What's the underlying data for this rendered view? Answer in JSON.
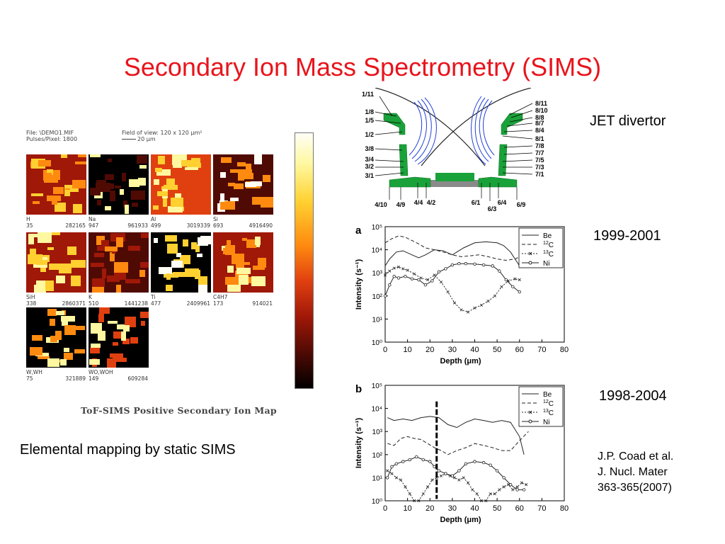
{
  "slide": {
    "title": "Secondary Ion Mass Spectrometry (SIMS)",
    "caption_left": "Elemental mapping by static SIMS",
    "label_jet": "JET divertor",
    "label_a": "1999-2001",
    "label_b": "1998-2004",
    "citation": [
      "J.P. Coad et al.",
      "J. Nucl. Mater",
      "363-365(2007)"
    ]
  },
  "ion_map": {
    "header_left": [
      "File: \\DEMO1.MIF",
      "Pulses/Pixel: 1800"
    ],
    "header_right": [
      "Field of view:  120 x 120  μm²",
      "20 μm"
    ],
    "caption": "ToF-SIMS Positive Secondary Ion Map",
    "tiles": [
      {
        "name": "H",
        "nums": [
          "35",
          "282165"
        ]
      },
      {
        "name": "Na",
        "nums": [
          "947",
          "961933"
        ]
      },
      {
        "name": "Al",
        "nums": [
          "499",
          "3019339"
        ]
      },
      {
        "name": "Si",
        "nums": [
          "693",
          "4916490"
        ]
      },
      {
        "name": "SiH",
        "nums": [
          "338",
          "2860371"
        ]
      },
      {
        "name": "K",
        "nums": [
          "510",
          "1441238"
        ]
      },
      {
        "name": "Ti",
        "nums": [
          "477",
          "2409961"
        ]
      },
      {
        "name": "C4H7",
        "nums": [
          "173",
          "914021"
        ]
      },
      {
        "name": "W,WH",
        "nums": [
          "75",
          "321889"
        ]
      },
      {
        "name": "WO,WOH",
        "nums": [
          "149",
          "609284"
        ]
      }
    ],
    "colors": [
      "#000000",
      "#500a04",
      "#a01808",
      "#e04010",
      "#ff8a10",
      "#ffd030",
      "#fff8a0",
      "#fffef6"
    ]
  },
  "divertor": {
    "left_labels": [
      "1/11",
      "1/8",
      "1/5",
      "1/2",
      "3/8",
      "3/4",
      "3/2",
      "3/1"
    ],
    "right_labels": [
      "8/11",
      "8/10",
      "8/8",
      "8/7",
      "8/4",
      "8/1",
      "7/8",
      "7/7",
      "7/5",
      "7/3",
      "7/1"
    ],
    "bottom_labels": [
      "4/10",
      "4/9",
      "4/4",
      "4/2",
      "6/1",
      "6/3",
      "6/4",
      "6/9"
    ],
    "colors": {
      "tile": "#1aa23a",
      "field_lines": "#1f3fd6",
      "separatrix": "#222222",
      "base": "#8a8a8a"
    }
  },
  "chart_data": [
    {
      "type": "line",
      "panel": "a",
      "xlabel": "Depth (μm)",
      "ylabel": "Intensity (s⁻¹)",
      "xlim": [
        0,
        80
      ],
      "xticks": [
        0,
        10,
        20,
        30,
        40,
        50,
        60,
        70,
        80
      ],
      "ylog": true,
      "yticks": [
        "10⁰",
        "10¹",
        "10²",
        "10³",
        "10⁴",
        "10⁵"
      ],
      "legend": [
        "Be",
        "12C",
        "13C",
        "Ni"
      ],
      "series": [
        {
          "name": "Be",
          "x": [
            0,
            2,
            5,
            8,
            12,
            15,
            18,
            22,
            26,
            30,
            35,
            40,
            45,
            50,
            53,
            56,
            58,
            60
          ],
          "y": [
            2000,
            4000,
            8000,
            9000,
            6000,
            4500,
            6000,
            10000,
            9000,
            6000,
            12000,
            20000,
            22000,
            20000,
            15000,
            8000,
            4000,
            2000
          ]
        },
        {
          "name": "12C",
          "x": [
            0,
            3,
            6,
            9,
            12,
            15,
            18,
            22,
            26,
            30,
            34,
            38,
            42,
            46,
            50,
            54,
            58,
            62,
            66,
            70,
            73,
            76
          ],
          "y": [
            20000,
            30000,
            40000,
            35000,
            25000,
            18000,
            12000,
            10000,
            8000,
            6000,
            5000,
            5500,
            6000,
            5000,
            4000,
            3500,
            4000,
            6000,
            10000,
            20000,
            35000,
            40000
          ]
        },
        {
          "name": "13C",
          "x": [
            0,
            2,
            4,
            6,
            8,
            10,
            13,
            16,
            19,
            22,
            25,
            28,
            31,
            34,
            37,
            40,
            43,
            46,
            49,
            52,
            55,
            58,
            60
          ],
          "y": [
            800,
            1200,
            1600,
            1800,
            1500,
            1300,
            900,
            600,
            500,
            800,
            400,
            150,
            50,
            25,
            20,
            30,
            40,
            60,
            100,
            250,
            450,
            550,
            500
          ]
        },
        {
          "name": "Ni",
          "x": [
            0,
            2,
            4,
            6,
            9,
            12,
            15,
            18,
            21,
            24,
            27,
            30,
            33,
            36,
            40,
            44,
            48,
            51,
            54,
            57,
            60
          ],
          "y": [
            100,
            300,
            700,
            600,
            700,
            550,
            500,
            300,
            450,
            1100,
            1500,
            2200,
            2500,
            2500,
            2400,
            2200,
            2000,
            1200,
            500,
            250,
            150
          ]
        }
      ]
    },
    {
      "type": "line",
      "panel": "b",
      "xlabel": "Depth (μm)",
      "ylabel": "Intensity (s⁻¹)",
      "xlim": [
        0,
        80
      ],
      "xticks": [
        0,
        10,
        20,
        30,
        40,
        50,
        60,
        70,
        80
      ],
      "ylog": true,
      "yticks": [
        "10⁰",
        "10¹",
        "10²",
        "10³",
        "10⁴",
        "10⁵"
      ],
      "legend": [
        "Be",
        "12C",
        "13C",
        "Ni"
      ],
      "marker_x": 23,
      "series": [
        {
          "name": "Be",
          "x": [
            1,
            4,
            8,
            12,
            16,
            20,
            24,
            28,
            32,
            36,
            40,
            44,
            48,
            52,
            56,
            60,
            62
          ],
          "y": [
            4000,
            3000,
            3500,
            3000,
            4000,
            4500,
            4000,
            2000,
            1500,
            2500,
            3500,
            3000,
            2500,
            3000,
            2500,
            600,
            100
          ]
        },
        {
          "name": "12C",
          "x": [
            1,
            4,
            7,
            10,
            13,
            16,
            19,
            22,
            25,
            28,
            32,
            36,
            40,
            44,
            48,
            52,
            56,
            60,
            64
          ],
          "y": [
            300,
            250,
            500,
            600,
            500,
            450,
            300,
            200,
            150,
            100,
            150,
            200,
            300,
            250,
            200,
            150,
            150,
            400,
            1000
          ]
        },
        {
          "name": "13C",
          "x": [
            1,
            3,
            5,
            7,
            9,
            11,
            13,
            15,
            17,
            19,
            21,
            23,
            25,
            27,
            29,
            31,
            33,
            35,
            37,
            39,
            41,
            43,
            45,
            47,
            49,
            51,
            53,
            55,
            57,
            59,
            61,
            63
          ],
          "y": [
            20,
            15,
            10,
            8,
            4,
            2,
            1,
            1,
            2,
            4,
            8,
            10,
            12,
            15,
            12,
            10,
            8,
            10,
            6,
            3,
            2,
            1,
            1,
            2,
            2,
            3,
            4,
            5,
            3,
            4,
            6,
            5
          ]
        },
        {
          "name": "Ni",
          "x": [
            1,
            3,
            5,
            8,
            11,
            14,
            17,
            20,
            22,
            24,
            27,
            30,
            33,
            36,
            40,
            44,
            47,
            50,
            53,
            56,
            59,
            62
          ],
          "y": [
            10,
            30,
            40,
            50,
            60,
            80,
            60,
            50,
            30,
            20,
            15,
            12,
            20,
            40,
            50,
            45,
            35,
            20,
            10,
            5,
            3,
            3
          ]
        }
      ]
    }
  ]
}
